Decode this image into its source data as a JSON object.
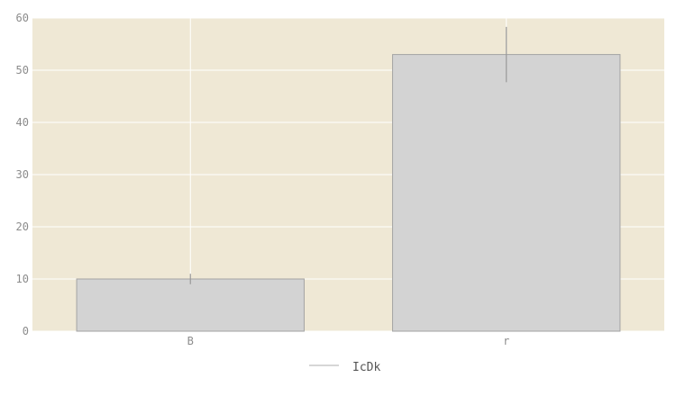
{
  "chart_data": {
    "type": "bar",
    "categories": [
      "B",
      "r"
    ],
    "series": [
      {
        "name": "IcDk",
        "values": [
          10,
          53
        ],
        "error_low": [
          9,
          47.7
        ],
        "error_high": [
          11,
          58.3
        ]
      }
    ],
    "ylim": [
      0,
      60
    ],
    "yticks": [
      0,
      10,
      20,
      30,
      40,
      50,
      60
    ],
    "grid": true,
    "legend_position": "bottom-center",
    "colors": {
      "plot_background": "#efe8d5",
      "bar_fill": "#d3d3d3",
      "bar_edge": "#a3a3a3",
      "error_bar": "#999999",
      "grid": "#ffffff",
      "legend_line": "#c8c8c8"
    }
  }
}
